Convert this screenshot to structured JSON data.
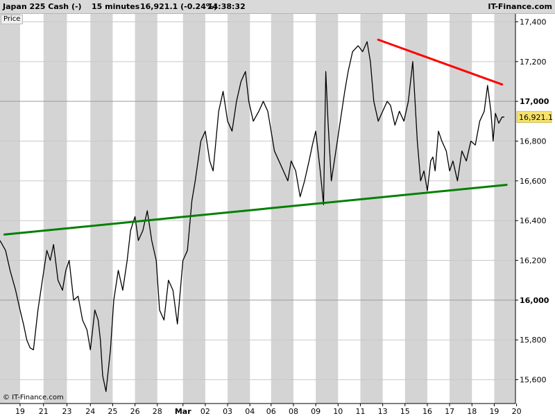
{
  "header": {
    "instrument": "Japan 225 Cash (-)",
    "timeframe": "15 minutes",
    "quote": "16,921.1 (-0.24%)",
    "time": "14:38:32",
    "brand": "IT-Finance.com"
  },
  "price_button_label": "Price",
  "credit": "© IT-Finance.com",
  "chart_data": {
    "type": "line",
    "title": "Japan 225 Cash (-)",
    "xlabel": "",
    "ylabel": "",
    "ylim": [
      15480,
      17440
    ],
    "xlim": [
      0,
      23.1
    ],
    "grid": true,
    "last_price": 16921.1,
    "last_price_label": "16,921.1",
    "colors": {
      "price": "#000000",
      "resistance": "#ff0000",
      "support": "#008000",
      "band": "#d4d4d4",
      "last": "#f7e26b"
    },
    "x_ticks": [
      {
        "x": 0.9,
        "label": "19"
      },
      {
        "x": 1.95,
        "label": "21"
      },
      {
        "x": 3.0,
        "label": "23"
      },
      {
        "x": 4.05,
        "label": "24"
      },
      {
        "x": 5.05,
        "label": "25"
      },
      {
        "x": 6.05,
        "label": "26"
      },
      {
        "x": 7.05,
        "label": "28"
      },
      {
        "x": 8.2,
        "label": "Mar"
      },
      {
        "x": 9.2,
        "label": "02"
      },
      {
        "x": 10.2,
        "label": "03"
      },
      {
        "x": 11.2,
        "label": "04"
      },
      {
        "x": 12.15,
        "label": "06"
      },
      {
        "x": 13.15,
        "label": "08"
      },
      {
        "x": 14.15,
        "label": "09"
      },
      {
        "x": 15.15,
        "label": "10"
      },
      {
        "x": 16.15,
        "label": "11"
      },
      {
        "x": 17.15,
        "label": "13"
      },
      {
        "x": 18.15,
        "label": "15"
      },
      {
        "x": 19.15,
        "label": "16"
      },
      {
        "x": 20.15,
        "label": "17"
      },
      {
        "x": 21.15,
        "label": "18"
      },
      {
        "x": 22.15,
        "label": "19"
      },
      {
        "x": 23.15,
        "label": "20"
      }
    ],
    "y_ticks": [
      {
        "value": 15600,
        "label": "15,600",
        "bold": false
      },
      {
        "value": 15800,
        "label": "15,800",
        "bold": false
      },
      {
        "value": 16000,
        "label": "16,000",
        "bold": true
      },
      {
        "value": 16200,
        "label": "16,200",
        "bold": false
      },
      {
        "value": 16400,
        "label": "16,400",
        "bold": false
      },
      {
        "value": 16600,
        "label": "16,600",
        "bold": false
      },
      {
        "value": 16800,
        "label": "16,800",
        "bold": false
      },
      {
        "value": 17000,
        "label": "17,000",
        "bold": true
      },
      {
        "value": 17200,
        "label": "17,200",
        "bold": false
      },
      {
        "value": 17400,
        "label": "17,400",
        "bold": false
      }
    ],
    "shaded_sessions": [
      [
        0,
        0.9
      ],
      [
        1.95,
        3.0
      ],
      [
        4.05,
        5.05
      ],
      [
        6.05,
        7.05
      ],
      [
        8.2,
        9.2
      ],
      [
        10.2,
        11.2
      ],
      [
        12.15,
        13.15
      ],
      [
        14.15,
        15.15
      ],
      [
        16.15,
        17.15
      ],
      [
        18.15,
        19.15
      ],
      [
        20.15,
        21.15
      ],
      [
        22.15,
        23.1
      ]
    ],
    "trendlines": [
      {
        "name": "support",
        "color": "#008000",
        "x": [
          0.2,
          22.7
        ],
        "y": [
          16330,
          16580
        ]
      },
      {
        "name": "resistance",
        "color": "#ff0000",
        "x": [
          16.95,
          22.5
        ],
        "y": [
          17310,
          17085
        ]
      }
    ],
    "series": [
      {
        "x": [
          0.0,
          0.25,
          0.45,
          0.7,
          0.9,
          1.05,
          1.2,
          1.35,
          1.5,
          1.7,
          1.9,
          2.1,
          2.25,
          2.4,
          2.6,
          2.8,
          2.95,
          3.1,
          3.3,
          3.5,
          3.7,
          3.9,
          4.05,
          4.25,
          4.4,
          4.5,
          4.6,
          4.75,
          4.95,
          5.1,
          5.3,
          5.5,
          5.7,
          5.85,
          6.05,
          6.2,
          6.4,
          6.6,
          6.8,
          7.0,
          7.15,
          7.35,
          7.55,
          7.75,
          7.95,
          8.2,
          8.4,
          8.6,
          8.75,
          9.0,
          9.2,
          9.4,
          9.55,
          9.8,
          10.0,
          10.2,
          10.4,
          10.6,
          10.8,
          11.0,
          11.15,
          11.35,
          11.6,
          11.8,
          12.0,
          12.15,
          12.3,
          12.5,
          12.7,
          12.9,
          13.05,
          13.25,
          13.45,
          13.65,
          13.85,
          14.0,
          14.15,
          14.35,
          14.5,
          14.6,
          14.7,
          14.85,
          15.05,
          15.25,
          15.45,
          15.6,
          15.8,
          16.05,
          16.25,
          16.45,
          16.6,
          16.75,
          16.95,
          17.15,
          17.35,
          17.5,
          17.7,
          17.9,
          18.1,
          18.3,
          18.5,
          18.7,
          18.85,
          19.0,
          19.15,
          19.3,
          19.4,
          19.5,
          19.65,
          19.8,
          20.0,
          20.15,
          20.3,
          20.5,
          20.7,
          20.9,
          21.1,
          21.3,
          21.5,
          21.7,
          21.85,
          22.0,
          22.1,
          22.2,
          22.35,
          22.5,
          22.6
        ],
        "y": [
          16300,
          16250,
          16150,
          16050,
          15950,
          15880,
          15800,
          15760,
          15750,
          15950,
          16100,
          16250,
          16200,
          16280,
          16100,
          16050,
          16150,
          16200,
          16000,
          16020,
          15900,
          15850,
          15750,
          15950,
          15900,
          15800,
          15620,
          15540,
          15750,
          16000,
          16150,
          16050,
          16200,
          16350,
          16420,
          16300,
          16350,
          16450,
          16300,
          16200,
          15950,
          15900,
          16100,
          16050,
          15880,
          16200,
          16250,
          16500,
          16600,
          16800,
          16850,
          16700,
          16650,
          16950,
          17050,
          16900,
          16850,
          17000,
          17100,
          17150,
          17000,
          16900,
          16950,
          17000,
          16950,
          16850,
          16750,
          16700,
          16650,
          16600,
          16700,
          16650,
          16520,
          16600,
          16700,
          16780,
          16850,
          16650,
          16480,
          17150,
          16900,
          16600,
          16750,
          16900,
          17050,
          17150,
          17250,
          17280,
          17250,
          17300,
          17200,
          17000,
          16900,
          16950,
          17000,
          16980,
          16880,
          16950,
          16900,
          17000,
          17200,
          16800,
          16600,
          16650,
          16550,
          16700,
          16720,
          16650,
          16850,
          16800,
          16750,
          16650,
          16700,
          16600,
          16750,
          16700,
          16800,
          16780,
          16900,
          16950,
          17080,
          16950,
          16800,
          16940,
          16890,
          16921.1,
          16921.1
        ]
      }
    ]
  }
}
